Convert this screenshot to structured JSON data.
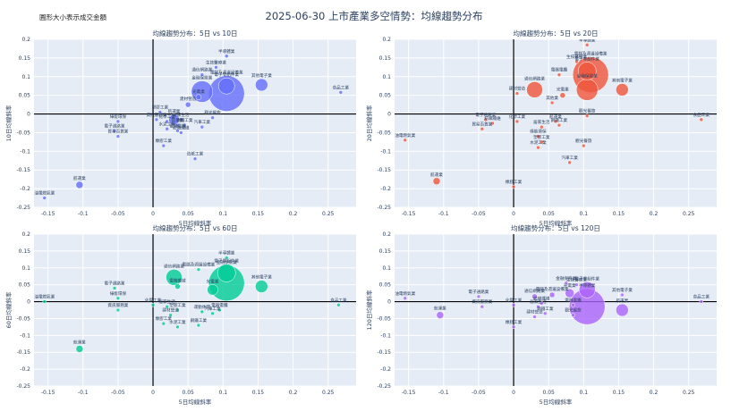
{
  "page": {
    "title": "2025-06-30 上市產業多空情勢：均線趨勢分布",
    "note": "圓形大小表示成交金額"
  },
  "colors": {
    "panel_bg": "#e5ecf6",
    "grid": "#ffffff",
    "axis_zero": "#000000",
    "series": [
      "#636efa",
      "#ef553b",
      "#00cc96",
      "#ab63fa"
    ]
  },
  "chart_data": [
    {
      "type": "scatter",
      "title": "均線趨勢分布：5日 vs 10日",
      "xlabel": "5日均線斜率",
      "ylabel": "10日均線斜率",
      "xlim": [
        -0.17,
        0.29
      ],
      "ylim": [
        -0.25,
        0.2
      ],
      "xticks": [
        -0.15,
        -0.1,
        -0.05,
        0,
        0.05,
        0.1,
        0.15,
        0.2,
        0.25
      ],
      "yticks": [
        -0.25,
        -0.2,
        -0.15,
        -0.1,
        -0.05,
        0,
        0.05,
        0.1,
        0.15,
        0.2
      ],
      "points": [
        {
          "label": "半導體業",
          "x": 0.105,
          "y": 0.155,
          "size": 2
        },
        {
          "label": "其他電子業",
          "x": 0.155,
          "y": 0.078,
          "size": 7
        },
        {
          "label": "生技醫療業",
          "x": 0.09,
          "y": 0.125,
          "size": 2
        },
        {
          "label": "食品工業",
          "x": 0.268,
          "y": 0.058,
          "size": 2
        },
        {
          "label": "通信網路業",
          "x": 0.07,
          "y": 0.105,
          "size": 2
        },
        {
          "label": "電子零組件業",
          "x": 0.105,
          "y": 0.075,
          "size": 9
        },
        {
          "label": "電腦及週邊設備業",
          "x": 0.105,
          "y": 0.055,
          "size": 20
        },
        {
          "label": "金融保險業",
          "x": 0.07,
          "y": 0.06,
          "size": 12
        },
        {
          "label": "光電業",
          "x": 0.065,
          "y": 0.045,
          "size": 3
        },
        {
          "label": "建材營造",
          "x": 0.05,
          "y": 0.025,
          "size": 3
        },
        {
          "label": "塑膠工業",
          "x": 0.01,
          "y": 0.005,
          "size": 2
        },
        {
          "label": "觀光餐旅",
          "x": 0.085,
          "y": -0.01,
          "size": 2
        },
        {
          "label": "居家生活",
          "x": 0.04,
          "y": -0.015,
          "size": 2
        },
        {
          "label": "化學工業",
          "x": 0.02,
          "y": -0.02,
          "size": 2
        },
        {
          "label": "其他業",
          "x": 0.035,
          "y": -0.03,
          "size": 2
        },
        {
          "label": "航運業",
          "x": 0.03,
          "y": -0.015,
          "size": 6
        },
        {
          "label": "綠能環保",
          "x": -0.05,
          "y": -0.02,
          "size": 2
        },
        {
          "label": "資訊服務業",
          "x": 0.005,
          "y": -0.015,
          "size": 2
        },
        {
          "label": "汽車工業",
          "x": 0.07,
          "y": -0.035,
          "size": 2
        },
        {
          "label": "鋼鐵工業",
          "x": 0.045,
          "y": -0.03,
          "size": 2
        },
        {
          "label": "水泥工業",
          "x": 0.02,
          "y": -0.04,
          "size": 2
        },
        {
          "label": "電子通路業",
          "x": -0.055,
          "y": -0.045,
          "size": 2
        },
        {
          "label": "貿易百貨業",
          "x": -0.05,
          "y": -0.06,
          "size": 2
        },
        {
          "label": "電器電纜",
          "x": 0.035,
          "y": -0.045,
          "size": 2
        },
        {
          "label": "紡織纖維",
          "x": 0.04,
          "y": -0.05,
          "size": 2
        },
        {
          "label": "橡膠工業",
          "x": 0.015,
          "y": -0.085,
          "size": 2
        },
        {
          "label": "造紙工業",
          "x": 0.06,
          "y": -0.12,
          "size": 2
        },
        {
          "label": "航運業",
          "x": -0.105,
          "y": -0.19,
          "size": 4
        },
        {
          "label": "油電燃氣業",
          "x": -0.155,
          "y": -0.225,
          "size": 2
        }
      ]
    },
    {
      "type": "scatter",
      "title": "均線趨勢分布：5日 vs 20日",
      "xlabel": "5日均線斜率",
      "ylabel": "20日均線斜率",
      "xlim": [
        -0.17,
        0.29
      ],
      "ylim": [
        -0.25,
        0.2
      ],
      "xticks": [
        -0.15,
        -0.1,
        -0.05,
        0,
        0.05,
        0.1,
        0.15,
        0.2,
        0.25
      ],
      "yticks": [
        -0.25,
        -0.2,
        -0.15,
        -0.1,
        -0.05,
        0,
        0.05,
        0.1,
        0.15,
        0.2
      ],
      "points": [
        {
          "label": "半導體業",
          "x": 0.105,
          "y": 0.185,
          "size": 2
        },
        {
          "label": "生技醫療業",
          "x": 0.09,
          "y": 0.14,
          "size": 2
        },
        {
          "label": "電子零組件業",
          "x": 0.105,
          "y": 0.115,
          "size": 10
        },
        {
          "label": "電腦及週邊設備業",
          "x": 0.11,
          "y": 0.105,
          "size": 20
        },
        {
          "label": "電器電纜",
          "x": 0.065,
          "y": 0.105,
          "size": 2
        },
        {
          "label": "金融保險業",
          "x": 0.105,
          "y": 0.065,
          "size": 12
        },
        {
          "label": "其他電子業",
          "x": 0.155,
          "y": 0.065,
          "size": 7
        },
        {
          "label": "通信網路業",
          "x": 0.03,
          "y": 0.065,
          "size": 9
        },
        {
          "label": "光電業",
          "x": 0.07,
          "y": 0.05,
          "size": 3
        },
        {
          "label": "建材營造",
          "x": 0.005,
          "y": 0.055,
          "size": 2
        },
        {
          "label": "其他業",
          "x": 0.055,
          "y": 0.03,
          "size": 2
        },
        {
          "label": "食品工業",
          "x": 0.268,
          "y": -0.015,
          "size": 2
        },
        {
          "label": "觀光餐旅",
          "x": 0.105,
          "y": -0.005,
          "size": 2
        },
        {
          "label": "電子通路業",
          "x": -0.04,
          "y": -0.015,
          "size": 2
        },
        {
          "label": "紡織纖維",
          "x": -0.03,
          "y": -0.025,
          "size": 2
        },
        {
          "label": "化學工業",
          "x": 0.005,
          "y": -0.02,
          "size": 2
        },
        {
          "label": "貿易百貨業",
          "x": -0.045,
          "y": -0.04,
          "size": 2
        },
        {
          "label": "居家生活",
          "x": 0.04,
          "y": -0.035,
          "size": 2
        },
        {
          "label": "航運業",
          "x": 0.06,
          "y": -0.02,
          "size": 2
        },
        {
          "label": "綠能環保",
          "x": 0.035,
          "y": -0.06,
          "size": 2
        },
        {
          "label": "塑膠工業",
          "x": 0.04,
          "y": -0.075,
          "size": 2
        },
        {
          "label": "水泥工業",
          "x": 0.035,
          "y": -0.09,
          "size": 2
        },
        {
          "label": "鋼鐵工業",
          "x": 0.065,
          "y": -0.03,
          "size": 2
        },
        {
          "label": "汽車工業",
          "x": 0.08,
          "y": -0.13,
          "size": 2
        },
        {
          "label": "觀光餐旅",
          "x": 0.1,
          "y": -0.085,
          "size": 2
        },
        {
          "label": "油電燃氣業",
          "x": -0.155,
          "y": -0.07,
          "size": 2
        },
        {
          "label": "航運業",
          "x": -0.11,
          "y": -0.18,
          "size": 4
        },
        {
          "label": "橡膠工業",
          "x": 0.0,
          "y": -0.195,
          "size": 2
        }
      ]
    },
    {
      "type": "scatter",
      "title": "均線趨勢分布：5日 vs 60日",
      "xlabel": "5日均線斜率",
      "ylabel": "60日均線斜率",
      "xlim": [
        -0.17,
        0.29
      ],
      "ylim": [
        -0.25,
        0.2
      ],
      "xticks": [
        -0.15,
        -0.1,
        -0.05,
        0,
        0.05,
        0.1,
        0.15,
        0.2,
        0.25
      ],
      "yticks": [
        -0.25,
        -0.2,
        -0.15,
        -0.1,
        -0.05,
        0,
        0.05,
        0.1,
        0.15,
        0.2
      ],
      "points": [
        {
          "label": "半導體業",
          "x": 0.105,
          "y": 0.13,
          "size": 2
        },
        {
          "label": "電腦及週邊設備業",
          "x": 0.065,
          "y": 0.095,
          "size": 2
        },
        {
          "label": "電子零組件業",
          "x": 0.105,
          "y": 0.085,
          "size": 10
        },
        {
          "label": "通信網路業",
          "x": 0.03,
          "y": 0.072,
          "size": 9
        },
        {
          "label": "金融保險業",
          "x": 0.105,
          "y": 0.055,
          "size": 20
        },
        {
          "label": "其他電子業",
          "x": 0.155,
          "y": 0.045,
          "size": 7
        },
        {
          "label": "電機機械",
          "x": 0.035,
          "y": 0.045,
          "size": 3
        },
        {
          "label": "光電業",
          "x": 0.085,
          "y": 0.035,
          "size": 6
        },
        {
          "label": "電子通路業",
          "x": -0.055,
          "y": 0.04,
          "size": 2
        },
        {
          "label": "綠能環保",
          "x": -0.05,
          "y": 0.01,
          "size": 2
        },
        {
          "label": "油電燃氣業",
          "x": -0.155,
          "y": 0.0,
          "size": 2
        },
        {
          "label": "食品工業",
          "x": 0.265,
          "y": -0.01,
          "size": 2
        },
        {
          "label": "化學工業",
          "x": 0.0,
          "y": -0.01,
          "size": 2
        },
        {
          "label": "居家生活",
          "x": 0.02,
          "y": -0.015,
          "size": 2
        },
        {
          "label": "資訊服務業",
          "x": -0.05,
          "y": -0.025,
          "size": 2
        },
        {
          "label": "塑膠工業",
          "x": 0.035,
          "y": -0.025,
          "size": 2
        },
        {
          "label": "電器電纜",
          "x": 0.095,
          "y": -0.025,
          "size": 2
        },
        {
          "label": "運動休閒",
          "x": 0.07,
          "y": -0.03,
          "size": 2
        },
        {
          "label": "汽車工業",
          "x": 0.085,
          "y": -0.035,
          "size": 2
        },
        {
          "label": "建材營造",
          "x": 0.025,
          "y": -0.04,
          "size": 2
        },
        {
          "label": "橡膠工業",
          "x": 0.015,
          "y": -0.065,
          "size": 2
        },
        {
          "label": "鋼鐵工業",
          "x": 0.065,
          "y": -0.07,
          "size": 2
        },
        {
          "label": "水泥工業",
          "x": 0.035,
          "y": -0.075,
          "size": 2
        },
        {
          "label": "航運業",
          "x": -0.105,
          "y": -0.14,
          "size": 4
        }
      ]
    },
    {
      "type": "scatter",
      "title": "均線趨勢分布：5日 vs 120日",
      "xlabel": "5日均線斜率",
      "ylabel": "120日均線斜率",
      "xlim": [
        -0.17,
        0.29
      ],
      "ylim": [
        -0.25,
        0.2
      ],
      "xticks": [
        -0.15,
        -0.1,
        -0.05,
        0,
        0.05,
        0.1,
        0.15,
        0.2,
        0.25
      ],
      "yticks": [
        -0.25,
        -0.2,
        -0.15,
        -0.1,
        -0.05,
        0,
        0.05,
        0.1,
        0.15,
        0.2
      ],
      "points": [
        {
          "label": "金融保險業",
          "x": 0.075,
          "y": 0.055,
          "size": 2
        },
        {
          "label": "生技醫療業",
          "x": 0.09,
          "y": 0.05,
          "size": 2
        },
        {
          "label": "電子零組件業",
          "x": 0.105,
          "y": 0.035,
          "size": 9
        },
        {
          "label": "光電業",
          "x": 0.08,
          "y": 0.025,
          "size": 5
        },
        {
          "label": "電腦及週邊設備業",
          "x": 0.055,
          "y": 0.02,
          "size": 3
        },
        {
          "label": "其他電子業",
          "x": 0.155,
          "y": 0.02,
          "size": 2
        },
        {
          "label": "通信網路業",
          "x": 0.03,
          "y": 0.015,
          "size": 3
        },
        {
          "label": "電子通路業",
          "x": -0.05,
          "y": 0.015,
          "size": 2
        },
        {
          "label": "油電燃氣業",
          "x": -0.155,
          "y": 0.01,
          "size": 2
        },
        {
          "label": "食品工業",
          "x": 0.268,
          "y": 0.0,
          "size": 2
        },
        {
          "label": "半導體業",
          "x": 0.105,
          "y": -0.015,
          "size": 20
        },
        {
          "label": "航運業",
          "x": 0.155,
          "y": -0.025,
          "size": 7
        },
        {
          "label": "化學工業",
          "x": 0.0,
          "y": -0.01,
          "size": 2
        },
        {
          "label": "居家生活",
          "x": 0.035,
          "y": -0.015,
          "size": 2
        },
        {
          "label": "紡織纖維",
          "x": 0.04,
          "y": -0.005,
          "size": 2
        },
        {
          "label": "電器電纜",
          "x": 0.085,
          "y": -0.01,
          "size": 2
        },
        {
          "label": "資訊服務業",
          "x": -0.045,
          "y": -0.015,
          "size": 2
        },
        {
          "label": "觀光餐旅",
          "x": 0.085,
          "y": -0.04,
          "size": 2
        },
        {
          "label": "鋼鐵工業",
          "x": 0.045,
          "y": -0.035,
          "size": 2
        },
        {
          "label": "建材營造",
          "x": 0.03,
          "y": -0.045,
          "size": 2
        },
        {
          "label": "橡膠工業",
          "x": 0.0,
          "y": -0.075,
          "size": 2
        },
        {
          "label": "航運業",
          "x": -0.105,
          "y": -0.04,
          "size": 4
        }
      ]
    }
  ]
}
